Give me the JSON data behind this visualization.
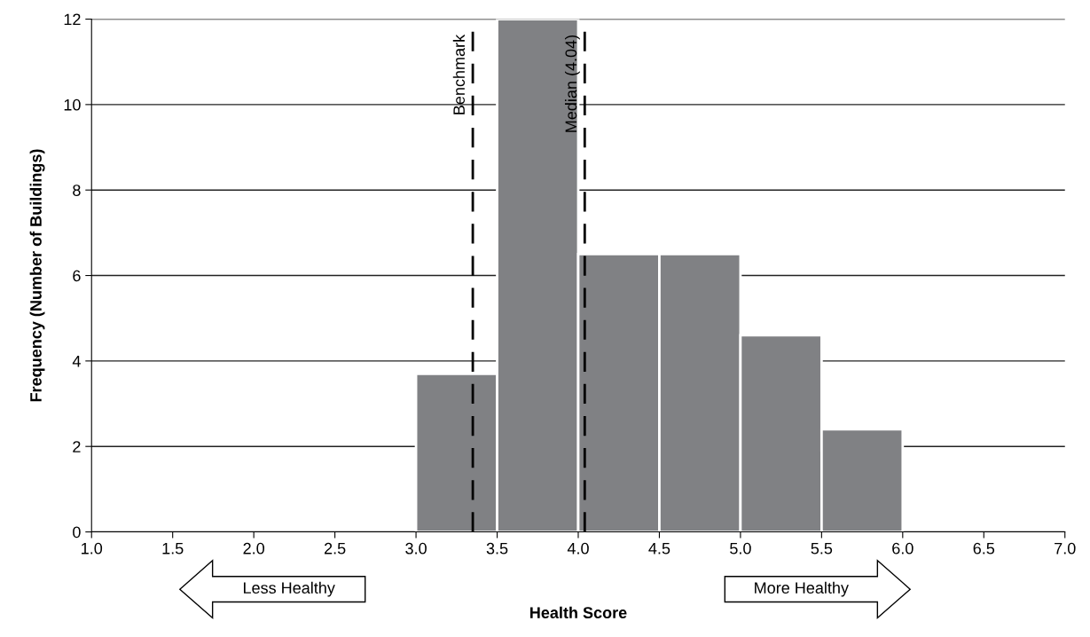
{
  "chart_data": {
    "type": "histogram",
    "xlabel": "Health Score",
    "ylabel": "Frequency (Number of Buildings)",
    "bins": [
      3.0,
      3.5,
      4.0,
      4.5,
      5.0,
      5.5,
      6.0
    ],
    "values": [
      3.7,
      12,
      6.5,
      6.5,
      4.6,
      2.4
    ],
    "color": "#808184",
    "xlim": [
      1.0,
      7.0
    ],
    "xticks": [
      {
        "value": 1.0,
        "label": "1.0"
      },
      {
        "value": 1.5,
        "label": "1.5"
      },
      {
        "value": 2.0,
        "label": "2.0"
      },
      {
        "value": 2.5,
        "label": "2.5"
      },
      {
        "value": 3.0,
        "label": "3.0"
      },
      {
        "value": 3.5,
        "label": "3.5"
      },
      {
        "value": 4.0,
        "label": "4.0"
      },
      {
        "value": 4.5,
        "label": "4.5"
      },
      {
        "value": 5.0,
        "label": "5.0"
      },
      {
        "value": 5.5,
        "label": "5.5"
      },
      {
        "value": 6.0,
        "label": "6.0"
      },
      {
        "value": 6.5,
        "label": "6.5"
      },
      {
        "value": 7.0,
        "label": "7.0"
      }
    ],
    "ylim": [
      0,
      12
    ],
    "yticks": [
      0,
      2,
      4,
      6,
      8,
      10,
      12
    ],
    "grid": "y",
    "ref_lines": [
      {
        "axis": "x",
        "value": 3.35,
        "label": "Benchmark",
        "color": "#000000",
        "line_style": "dashed"
      },
      {
        "axis": "x",
        "value": 4.04,
        "label": "Median (4.04)",
        "color": "#000000",
        "line_style": "dashed"
      }
    ],
    "annotations": [
      "Less Healthy",
      "More Healthy"
    ]
  }
}
